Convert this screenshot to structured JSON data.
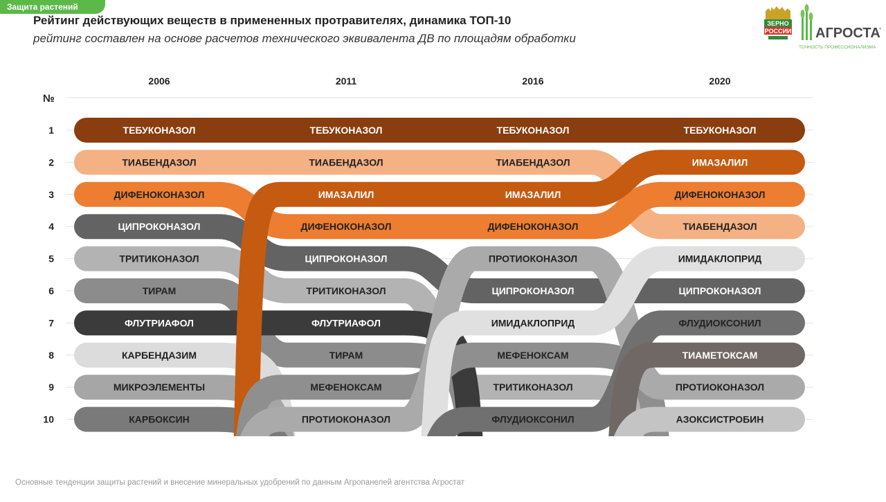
{
  "section_tag": "Защита растений",
  "header": {
    "title": "Рейтинг действующих веществ в примененных протравителях, динамика ТОП-10",
    "subtitle": "рейтинг составлен на основе расчетов технического эквивалента ДВ по площадям обработки"
  },
  "logo": {
    "zerno_line1": "ЗЕРНО",
    "zerno_line2": "РОССИИ",
    "brand": "АГРОСТАТ",
    "tagline": "ТОЧНОСТЬ ПРОФЕССИОНАЛИЗМА"
  },
  "footer": "Основные тенденции защиты растений и внесение минеральных удобрений  по данным Агропанелей агентства Агростат",
  "colors": {
    "brand_green": "#5db84a",
    "title_text": "#222222"
  },
  "chart_data": {
    "type": "bump",
    "rank_header": "№",
    "years": [
      "2006",
      "2011",
      "2016",
      "2020"
    ],
    "ranks": [
      1,
      2,
      3,
      4,
      5,
      6,
      7,
      8,
      9,
      10
    ],
    "series": [
      {
        "name": "ТЕБУКОНАЗОЛ",
        "color": "#8a3d0e",
        "text_color": "#ffffff",
        "ranks": [
          1,
          1,
          1,
          1
        ]
      },
      {
        "name": "ТИАБЕНДАЗОЛ",
        "color": "#f4b183",
        "text_color": "#222222",
        "ranks": [
          2,
          2,
          2,
          4
        ]
      },
      {
        "name": "ДИФЕНОКОНАЗОЛ",
        "color": "#ed7d31",
        "text_color": "#222222",
        "ranks": [
          3,
          4,
          4,
          3
        ]
      },
      {
        "name": "ЦИПРОКОНАЗОЛ",
        "color": "#636363",
        "text_color": "#ffffff",
        "ranks": [
          4,
          5,
          6,
          6
        ]
      },
      {
        "name": "ТРИТИКОНАЗОЛ",
        "color": "#b3b3b3",
        "text_color": "#222222",
        "ranks": [
          5,
          6,
          9,
          null
        ]
      },
      {
        "name": "ТИРАМ",
        "color": "#8c8c8c",
        "text_color": "#222222",
        "ranks": [
          6,
          8,
          null,
          null
        ]
      },
      {
        "name": "ФЛУТРИАФОЛ",
        "color": "#3b3b3b",
        "text_color": "#ffffff",
        "ranks": [
          7,
          7,
          null,
          null
        ]
      },
      {
        "name": "КАРБЕНДАЗИМ",
        "color": "#dcdcdc",
        "text_color": "#222222",
        "ranks": [
          8,
          null,
          null,
          null
        ]
      },
      {
        "name": "МИКРОЭЛЕМЕНТЫ",
        "color": "#a6a6a6",
        "text_color": "#222222",
        "ranks": [
          9,
          null,
          null,
          null
        ]
      },
      {
        "name": "КАРБОКСИН",
        "color": "#7a7a7a",
        "text_color": "#222222",
        "ranks": [
          10,
          null,
          null,
          null
        ]
      },
      {
        "name": "ИМАЗАЛИЛ",
        "color": "#c55a11",
        "text_color": "#ffffff",
        "ranks": [
          null,
          3,
          3,
          2
        ]
      },
      {
        "name": "МЕФЕНОКСАМ",
        "color": "#8f8f8f",
        "text_color": "#222222",
        "ranks": [
          null,
          9,
          8,
          null
        ]
      },
      {
        "name": "ПРОТИОКОНАЗОЛ",
        "color": "#aaaaaa",
        "text_color": "#222222",
        "ranks": [
          null,
          10,
          5,
          9
        ]
      },
      {
        "name": "ИМИДАКЛОПРИД",
        "color": "#e0e0e0",
        "text_color": "#222222",
        "ranks": [
          null,
          null,
          7,
          5
        ]
      },
      {
        "name": "ФЛУДИОКСОНИЛ",
        "color": "#707070",
        "text_color": "#222222",
        "ranks": [
          null,
          null,
          10,
          7
        ]
      },
      {
        "name": "ТИАМЕТОКСАМ",
        "color": "#6f6864",
        "text_color": "#ffffff",
        "ranks": [
          null,
          null,
          null,
          8
        ]
      },
      {
        "name": "АЗОКСИСТРОБИН",
        "color": "#c4c4c4",
        "text_color": "#222222",
        "ranks": [
          null,
          null,
          null,
          10
        ]
      }
    ]
  }
}
